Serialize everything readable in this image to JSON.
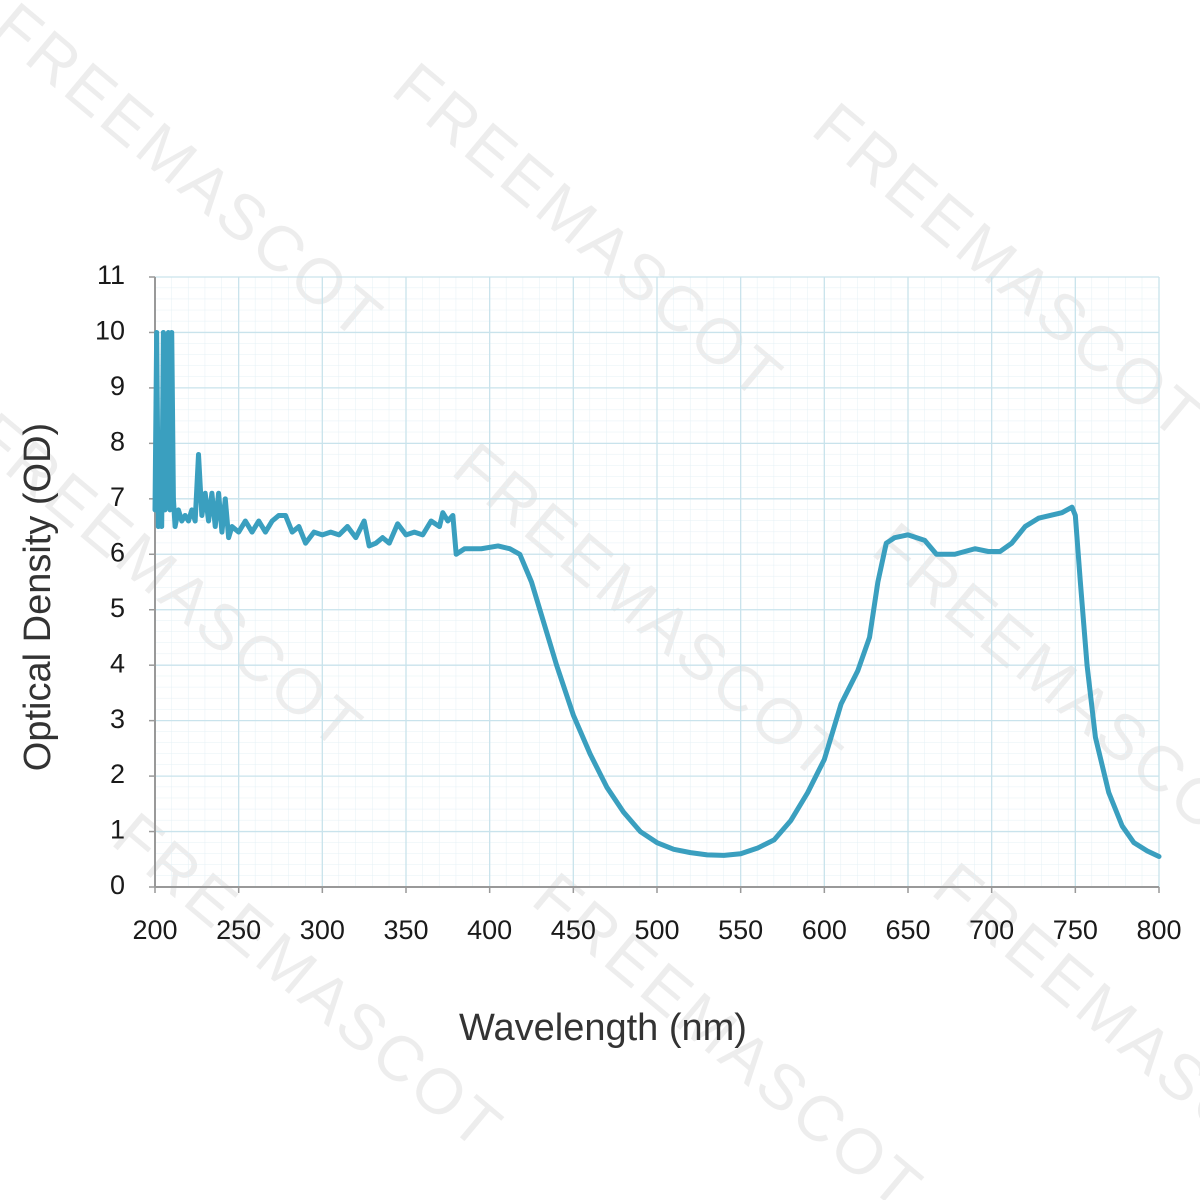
{
  "watermark": "FREEMASCOT",
  "chart_data": {
    "type": "line",
    "x_label": "Wavelength (nm)",
    "y_label": "Optical Density (OD)",
    "xlim": [
      200,
      800
    ],
    "ylim": [
      0,
      11
    ],
    "xticks": [
      200,
      250,
      300,
      350,
      400,
      450,
      500,
      550,
      600,
      650,
      700,
      750,
      800
    ],
    "yticks": [
      0,
      1,
      2,
      3,
      4,
      5,
      6,
      7,
      8,
      9,
      10,
      11
    ],
    "grid": true,
    "series": [
      {
        "name": "OD",
        "color": "#3a9fbf",
        "x": [
          200,
          201,
          202,
          203,
          204,
          205,
          206,
          207,
          208,
          209,
          210,
          211,
          212,
          214,
          216,
          218,
          220,
          222,
          224,
          226,
          228,
          230,
          232,
          234,
          236,
          238,
          240,
          242,
          244,
          246,
          250,
          254,
          258,
          262,
          266,
          270,
          274,
          278,
          282,
          286,
          290,
          295,
          300,
          305,
          310,
          315,
          320,
          325,
          328,
          332,
          336,
          340,
          345,
          350,
          355,
          360,
          365,
          370,
          372,
          375,
          378,
          380,
          385,
          395,
          405,
          412,
          418,
          425,
          430,
          440,
          450,
          460,
          470,
          480,
          490,
          500,
          510,
          520,
          530,
          540,
          550,
          560,
          570,
          580,
          590,
          600,
          605,
          610,
          620,
          627,
          632,
          637,
          642,
          650,
          660,
          667,
          678,
          690,
          698,
          705,
          712,
          720,
          728,
          735,
          742,
          748,
          750,
          753,
          757,
          762,
          770,
          778,
          785,
          793,
          800
        ],
        "values": [
          6.8,
          10,
          6.5,
          8,
          6.5,
          10,
          6.8,
          9,
          10,
          6.8,
          10,
          7,
          6.5,
          6.8,
          6.6,
          6.7,
          6.6,
          6.8,
          6.6,
          7.8,
          6.7,
          7.1,
          6.6,
          7.1,
          6.5,
          7.1,
          6.4,
          7.0,
          6.3,
          6.5,
          6.4,
          6.6,
          6.4,
          6.6,
          6.4,
          6.6,
          6.7,
          6.7,
          6.4,
          6.5,
          6.2,
          6.4,
          6.35,
          6.4,
          6.35,
          6.5,
          6.3,
          6.6,
          6.15,
          6.2,
          6.3,
          6.2,
          6.55,
          6.35,
          6.4,
          6.35,
          6.6,
          6.5,
          6.75,
          6.6,
          6.7,
          6.0,
          6.1,
          6.1,
          6.15,
          6.1,
          6.0,
          5.5,
          5.0,
          4.0,
          3.1,
          2.4,
          1.8,
          1.35,
          1.0,
          0.8,
          0.68,
          0.62,
          0.58,
          0.57,
          0.6,
          0.7,
          0.85,
          1.2,
          1.7,
          2.3,
          2.8,
          3.3,
          3.9,
          4.5,
          5.5,
          6.2,
          6.3,
          6.35,
          6.25,
          6.0,
          6.0,
          6.1,
          6.05,
          6.05,
          6.2,
          6.5,
          6.65,
          6.7,
          6.75,
          6.85,
          6.7,
          5.5,
          4.0,
          2.7,
          1.7,
          1.1,
          0.8,
          0.65,
          0.55
        ]
      }
    ]
  }
}
